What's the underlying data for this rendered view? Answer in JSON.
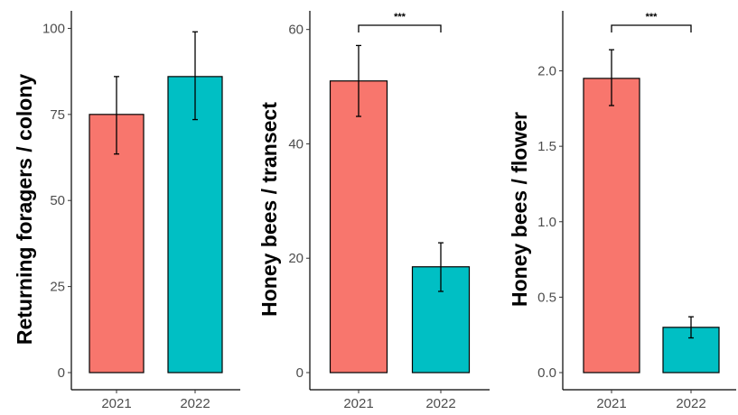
{
  "chart_data": [
    {
      "type": "bar",
      "categories": [
        "2021",
        "2022"
      ],
      "values": [
        75,
        86
      ],
      "error_low": [
        63.5,
        73.5
      ],
      "error_high": [
        86,
        99
      ],
      "bar_colors": [
        "#F8766D",
        "#00BFC4"
      ],
      "ylabel": "Returning foragers / colony",
      "xlabel": "",
      "ylim": [
        0,
        103
      ],
      "yticks": [
        0,
        25,
        50,
        75,
        100
      ],
      "ytick_labels": [
        "0",
        "25",
        "50",
        "75",
        "100"
      ],
      "significance": null,
      "grid": false
    },
    {
      "type": "bar",
      "categories": [
        "2021",
        "2022"
      ],
      "values": [
        51,
        18.5
      ],
      "error_low": [
        44.8,
        14.2
      ],
      "error_high": [
        57.2,
        22.7
      ],
      "bar_colors": [
        "#F8766D",
        "#00BFC4"
      ],
      "ylabel": "Honey bees / transect",
      "xlabel": "",
      "ylim": [
        0,
        62
      ],
      "yticks": [
        0,
        20,
        40,
        60
      ],
      "ytick_labels": [
        "0",
        "20",
        "40",
        "60"
      ],
      "significance": "***",
      "grid": false
    },
    {
      "type": "bar",
      "categories": [
        "2021",
        "2022"
      ],
      "values": [
        1.95,
        0.3
      ],
      "error_low": [
        1.77,
        0.23
      ],
      "error_high": [
        2.14,
        0.37
      ],
      "bar_colors": [
        "#F8766D",
        "#00BFC4"
      ],
      "ylabel": "Honey bees / flower",
      "xlabel": "",
      "ylim": [
        0,
        2.35
      ],
      "yticks": [
        0,
        0.5,
        1.0,
        1.5,
        2.0
      ],
      "ytick_labels": [
        "0.0",
        "0.5",
        "1.0",
        "1.5",
        "2.0"
      ],
      "significance": "***",
      "grid": false
    }
  ]
}
